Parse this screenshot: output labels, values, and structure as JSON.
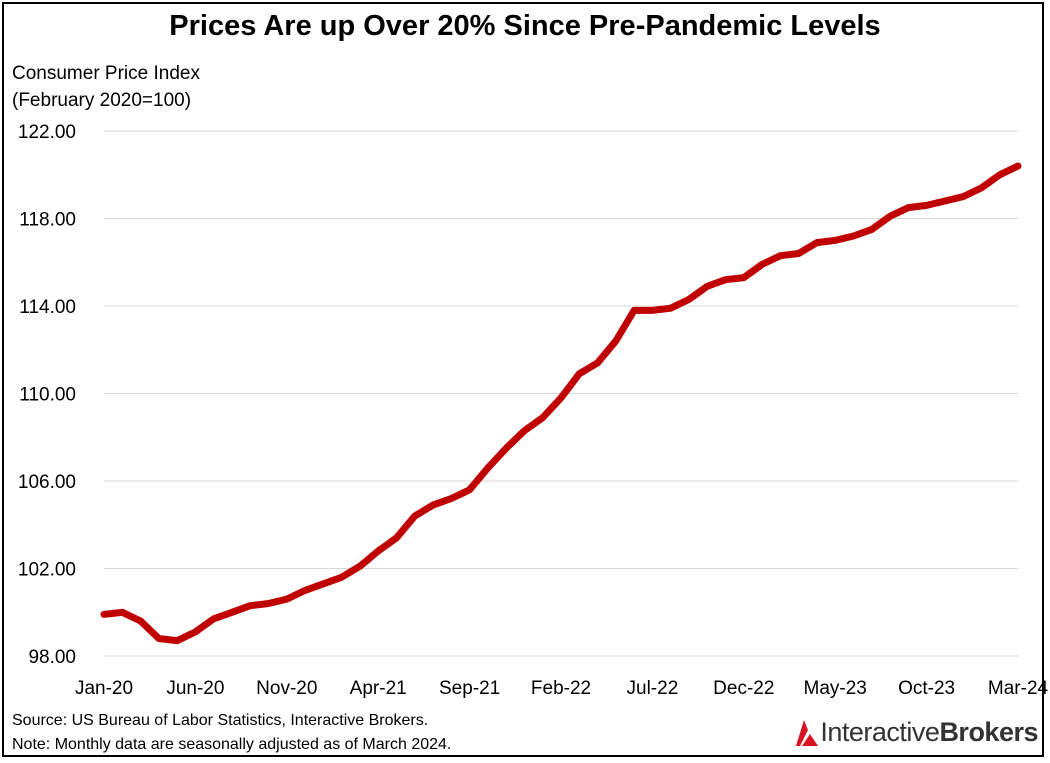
{
  "chart_data": {
    "type": "line",
    "title": "Prices Are up Over 20% Since Pre-Pandemic Levels",
    "ylabel_lines": [
      "Consumer Price Index",
      "(February 2020=100)"
    ],
    "xlabel": "",
    "ylim": [
      98,
      122
    ],
    "yticks": [
      "98.00",
      "102.00",
      "106.00",
      "110.00",
      "114.00",
      "118.00",
      "122.00"
    ],
    "ytick_values": [
      98,
      102,
      106,
      110,
      114,
      118,
      122
    ],
    "xtick_labels": [
      "Jan-20",
      "Jun-20",
      "Nov-20",
      "Apr-21",
      "Sep-21",
      "Feb-22",
      "Jul-22",
      "Dec-22",
      "May-23",
      "Oct-23",
      "Mar-24"
    ],
    "xtick_index": [
      0,
      5,
      10,
      15,
      20,
      25,
      30,
      35,
      40,
      45,
      50
    ],
    "grid": "horizontal",
    "line_color": "#c00000",
    "series": [
      {
        "values": [
          99.9,
          100.0,
          99.6,
          98.8,
          98.7,
          99.1,
          99.7,
          100.0,
          100.3,
          100.4,
          100.6,
          101.0,
          101.3,
          101.6,
          102.1,
          102.8,
          103.4,
          104.4,
          104.9,
          105.2,
          105.6,
          106.6,
          107.5,
          108.3,
          108.9,
          109.8,
          110.9,
          111.4,
          112.4,
          113.8,
          113.8,
          113.9,
          114.3,
          114.9,
          115.2,
          115.3,
          115.9,
          116.3,
          116.4,
          116.9,
          117.0,
          117.2,
          117.5,
          118.1,
          118.5,
          118.6,
          118.8,
          119.0,
          119.4,
          120.0,
          120.4
        ]
      }
    ]
  },
  "footer": {
    "source": "Source: US Bureau of Labor Statistics, Interactive Brokers.",
    "note": "Note: Monthly data are seasonally adjusted as of March 2024."
  },
  "logo": {
    "part1": "Interactive",
    "part2": "Brokers",
    "mark_color": "#d81222"
  }
}
